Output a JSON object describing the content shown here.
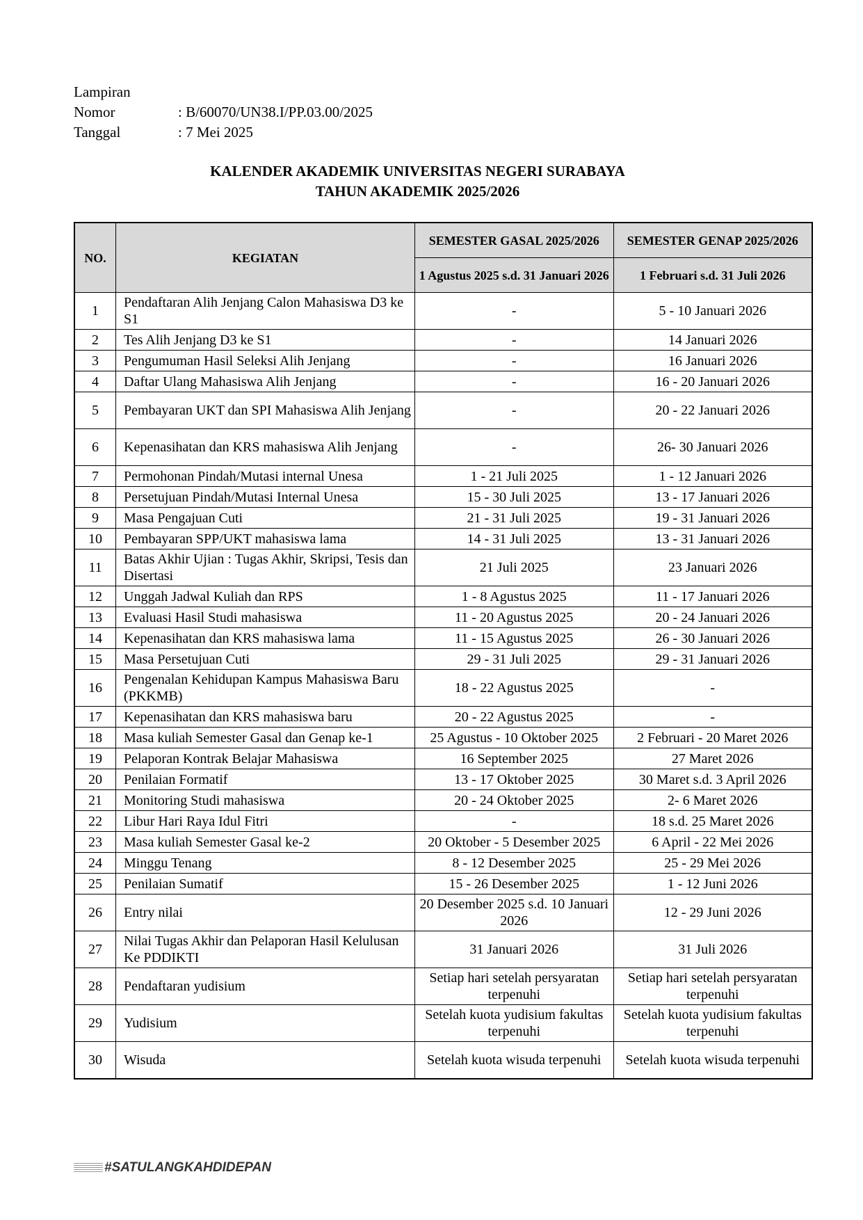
{
  "meta": {
    "lampiran_label": "Lampiran",
    "nomor_label": "Nomor",
    "nomor_value": ": B/60070/UN38.I/PP.03.00/2025",
    "tanggal_label": "Tanggal",
    "tanggal_value": ": 7 Mei 2025"
  },
  "title": {
    "line1": "KALENDER AKADEMIK UNIVERSITAS NEGERI SURABAYA",
    "line2": "TAHUN AKADEMIK 2025/2026"
  },
  "table": {
    "header_no": "NO.",
    "header_kegiatan": "KEGIATAN",
    "header_gasal": "SEMESTER GASAL 2025/2026",
    "header_genap": "SEMESTER GENAP 2025/2026",
    "header_gasal_range": "1 Agustus 2025 s.d. 31 Januari 2026",
    "header_genap_range": "1 Februari s.d. 31 Juli 2026",
    "header_bg": "#d9d9d9",
    "rows": [
      [
        "1",
        "Pendaftaran Alih Jenjang Calon Mahasiswa D3 ke S1",
        "-",
        "5 - 10 Januari 2026"
      ],
      [
        "2",
        "Tes Alih Jenjang D3 ke S1",
        "-",
        "14 Januari 2026"
      ],
      [
        "3",
        "Pengumuman Hasil Seleksi Alih Jenjang",
        "-",
        "16 Januari 2026"
      ],
      [
        "4",
        "Daftar Ulang Mahasiswa Alih Jenjang",
        "-",
        "16 - 20 Januari 2026"
      ],
      [
        "5",
        "Pembayaran UKT dan SPI Mahasiswa Alih Jenjang",
        "-",
        "20 - 22 Januari 2026"
      ],
      [
        "6",
        "Kepenasihatan dan KRS mahasiswa Alih Jenjang",
        "-",
        "26- 30 Januari 2026"
      ],
      [
        "7",
        "Permohonan Pindah/Mutasi internal Unesa",
        "1 - 21 Juli  2025",
        "1 - 12 Januari 2026"
      ],
      [
        "8",
        "Persetujuan Pindah/Mutasi Internal Unesa",
        "15 - 30 Juli 2025",
        "13 - 17 Januari 2026"
      ],
      [
        "9",
        "Masa Pengajuan Cuti",
        "21 - 31 Juli 2025",
        "19 - 31 Januari 2026"
      ],
      [
        "10",
        "Pembayaran SPP/UKT mahasiswa lama",
        "14 - 31 Juli 2025",
        "13 - 31 Januari 2026"
      ],
      [
        "11",
        "Batas Akhir Ujian : Tugas Akhir, Skripsi, Tesis dan Disertasi",
        "21 Juli 2025",
        "23 Januari 2026"
      ],
      [
        "12",
        "Unggah Jadwal Kuliah dan RPS",
        "1 - 8 Agustus 2025",
        "11 - 17 Januari 2026"
      ],
      [
        "13",
        "Evaluasi Hasil Studi mahasiswa",
        "11 - 20 Agustus 2025",
        "20 - 24 Januari 2026"
      ],
      [
        "14",
        "Kepenasihatan dan KRS mahasiswa lama",
        "11 - 15 Agustus 2025",
        "26 - 30 Januari 2026"
      ],
      [
        "15",
        "Masa Persetujuan Cuti",
        "29 - 31 Juli 2025",
        "29 - 31 Januari 2026"
      ],
      [
        "16",
        "Pengenalan Kehidupan Kampus Mahasiswa Baru (PKKMB)",
        "18 - 22 Agustus 2025",
        "-"
      ],
      [
        "17",
        "Kepenasihatan dan KRS mahasiswa baru",
        "20 - 22 Agustus 2025",
        "-"
      ],
      [
        "18",
        "Masa kuliah Semester Gasal dan Genap ke-1",
        "25 Agustus - 10 Oktober 2025",
        "2 Februari - 20 Maret 2026"
      ],
      [
        "19",
        "Pelaporan Kontrak Belajar Mahasiswa",
        "16 September 2025",
        "27 Maret 2026"
      ],
      [
        "20",
        "Penilaian Formatif",
        "13 - 17 Oktober 2025",
        "30 Maret s.d. 3 April 2026"
      ],
      [
        "21",
        "Monitoring Studi mahasiswa",
        "20 - 24 Oktober 2025",
        "2- 6 Maret 2026"
      ],
      [
        "22",
        "Libur Hari Raya Idul Fitri",
        "-",
        "18 s.d. 25 Maret 2026"
      ],
      [
        "23",
        "Masa kuliah Semester Gasal ke-2",
        "20 Oktober - 5 Desember 2025",
        "6 April - 22 Mei 2026"
      ],
      [
        "24",
        "Minggu Tenang",
        "8 - 12 Desember 2025",
        "25  - 29 Mei  2026"
      ],
      [
        "25",
        "Penilaian Sumatif",
        "15 - 26 Desember 2025",
        "1 - 12 Juni 2026"
      ],
      [
        "26",
        "Entry nilai",
        "20 Desember 2025 s.d. 10 Januari 2026",
        "12 - 29 Juni 2026"
      ],
      [
        "27",
        "Nilai Tugas Akhir dan Pelaporan Hasil Kelulusan Ke PDDIKTI",
        "31 Januari 2026",
        "31 Juli 2026"
      ],
      [
        "28",
        "Pendaftaran yudisium",
        "Setiap hari setelah persyaratan terpenuhi",
        "Setiap hari setelah persyaratan terpenuhi"
      ],
      [
        "29",
        "Yudisium",
        "Setelah kuota yudisium fakultas terpenuhi",
        "Setelah kuota yudisium fakultas terpenuhi"
      ],
      [
        "30",
        "Wisuda",
        "Setelah kuota wisuda terpenuhi",
        "Setelah kuota wisuda terpenuhi"
      ]
    ],
    "two_line_rows": [
      1,
      5,
      6,
      11,
      16,
      26,
      27,
      28,
      29,
      30
    ]
  },
  "footer": {
    "tagline": "#SATULANGKAHDIDEPAN"
  }
}
